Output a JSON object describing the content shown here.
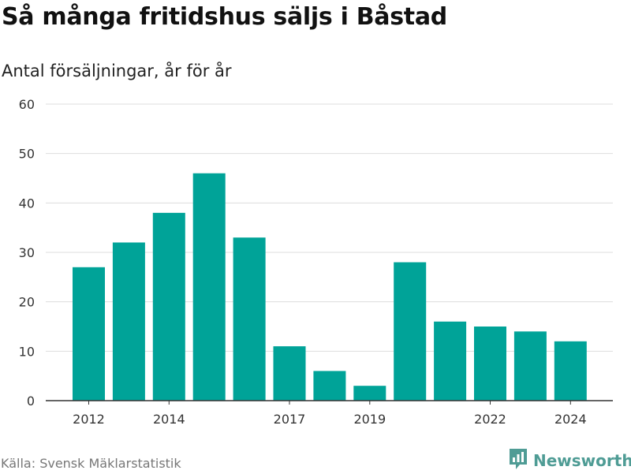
{
  "header": {
    "title": "Så många fritidshus säljs i Båstad",
    "subtitle": "Antal försäljningar, år för år"
  },
  "footer": {
    "source": "Källa: Svensk Mäklarstatistik",
    "brand": "Newsworthy",
    "brand_icon": "bar-chart-bubble-icon"
  },
  "colors": {
    "bar": "#00a398",
    "grid": "#dddddd",
    "axis": "#333333",
    "brand": "#4f9c95"
  },
  "chart_data": {
    "type": "bar",
    "title": "Så många fritidshus säljs i Båstad",
    "subtitle": "Antal försäljningar, år för år",
    "categories": [
      "2012",
      "2013",
      "2014",
      "2015",
      "2016",
      "2017",
      "2018",
      "2019",
      "2020",
      "2021",
      "2022",
      "2023",
      "2024"
    ],
    "values": [
      27,
      32,
      38,
      46,
      33,
      11,
      6,
      3,
      28,
      16,
      15,
      14,
      12
    ],
    "x_tick_labels": [
      "2012",
      "2014",
      "2017",
      "2019",
      "2022",
      "2024"
    ],
    "y_ticks": [
      0,
      10,
      20,
      30,
      40,
      50,
      60
    ],
    "ylim": [
      0,
      60
    ],
    "grid": true,
    "legend": "none"
  }
}
